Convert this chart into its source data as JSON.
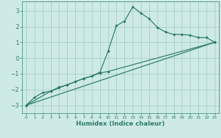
{
  "background_color": "#ceeae6",
  "grid_color": "#aad0cc",
  "line_color": "#2a7a6a",
  "xlabel": "Humidex (Indice chaleur)",
  "xlim": [
    -0.5,
    23.5
  ],
  "ylim": [
    -3.5,
    3.6
  ],
  "yticks": [
    -3,
    -2,
    -1,
    0,
    1,
    2,
    3
  ],
  "xticks": [
    0,
    1,
    2,
    3,
    4,
    5,
    6,
    7,
    8,
    9,
    10,
    11,
    12,
    13,
    14,
    15,
    16,
    17,
    18,
    19,
    20,
    21,
    22,
    23
  ],
  "line1_x": [
    0,
    1,
    2,
    3,
    4,
    5,
    6,
    7,
    8,
    9,
    10,
    11,
    12,
    13,
    14,
    15,
    16,
    17,
    18,
    19,
    20,
    21,
    22,
    23
  ],
  "line1_y": [
    -3.0,
    -2.5,
    -2.2,
    -2.1,
    -1.85,
    -1.7,
    -1.5,
    -1.3,
    -1.15,
    -0.9,
    0.45,
    2.05,
    2.35,
    3.25,
    2.85,
    2.5,
    1.95,
    1.65,
    1.5,
    1.5,
    1.45,
    1.3,
    1.3,
    1.0
  ],
  "line2_x": [
    0,
    3,
    4,
    5,
    6,
    7,
    8,
    9,
    10,
    23
  ],
  "line2_y": [
    -3.0,
    -2.1,
    -1.9,
    -1.7,
    -1.5,
    -1.3,
    -1.15,
    -0.95,
    -0.85,
    1.0
  ],
  "line3_x": [
    0,
    23
  ],
  "line3_y": [
    -3.0,
    1.0
  ]
}
